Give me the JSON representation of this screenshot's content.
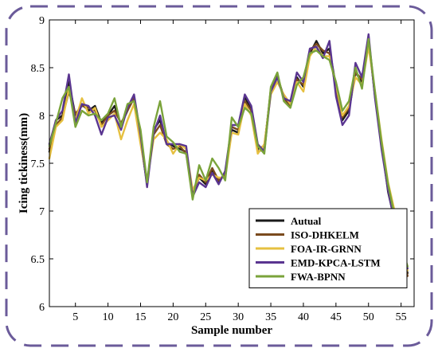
{
  "chart_data": {
    "type": "line",
    "xlabel": "Sample number",
    "ylabel": "Icing tickiness(mm)",
    "xlim": [
      1,
      57
    ],
    "ylim": [
      6,
      9
    ],
    "xticks": [
      5,
      10,
      15,
      20,
      25,
      30,
      35,
      40,
      45,
      50,
      55
    ],
    "yticks": [
      6,
      6.5,
      7,
      7.5,
      8,
      8.5,
      9
    ],
    "grid": false,
    "legend_position": "bottom-right",
    "x": [
      1,
      2,
      3,
      4,
      5,
      6,
      7,
      8,
      9,
      10,
      11,
      12,
      13,
      14,
      15,
      16,
      17,
      18,
      19,
      20,
      21,
      22,
      23,
      24,
      25,
      26,
      27,
      28,
      29,
      30,
      31,
      32,
      33,
      34,
      35,
      36,
      37,
      38,
      39,
      40,
      41,
      42,
      43,
      44,
      45,
      46,
      47,
      48,
      49,
      50,
      51,
      52,
      53,
      54,
      55,
      56
    ],
    "series": [
      {
        "name": "Autual",
        "color": "#1a1a1a",
        "values": [
          7.62,
          7.95,
          8.0,
          8.35,
          8.0,
          8.12,
          8.05,
          8.1,
          7.92,
          8.0,
          8.1,
          7.9,
          8.05,
          8.2,
          7.75,
          7.28,
          7.85,
          7.95,
          7.72,
          7.68,
          7.65,
          7.62,
          7.2,
          7.35,
          7.28,
          7.42,
          7.3,
          7.4,
          7.85,
          7.82,
          8.2,
          8.05,
          7.65,
          7.68,
          8.25,
          8.4,
          8.2,
          8.1,
          8.4,
          8.3,
          8.65,
          8.78,
          8.65,
          8.7,
          8.3,
          7.95,
          8.05,
          8.45,
          8.35,
          8.8,
          8.2,
          7.7,
          7.2,
          6.9,
          6.6,
          6.35
        ]
      },
      {
        "name": "ISO-DHKELM",
        "color": "#7a4a1e",
        "values": [
          7.65,
          7.9,
          7.98,
          8.25,
          8.02,
          8.1,
          8.08,
          8.05,
          7.9,
          8.0,
          8.05,
          7.92,
          8.05,
          8.18,
          7.72,
          7.3,
          7.8,
          7.9,
          7.7,
          7.65,
          7.68,
          7.6,
          7.18,
          7.38,
          7.3,
          7.45,
          7.32,
          7.38,
          7.88,
          7.85,
          8.15,
          8.05,
          7.62,
          7.65,
          8.28,
          8.42,
          8.18,
          8.1,
          8.38,
          8.32,
          8.68,
          8.75,
          8.68,
          8.65,
          8.28,
          7.98,
          8.08,
          8.45,
          8.38,
          8.78,
          8.22,
          7.68,
          7.25,
          6.92,
          6.62,
          6.32
        ]
      },
      {
        "name": "FOA-IR-GRNN",
        "color": "#e6c040",
        "values": [
          7.55,
          7.88,
          7.95,
          8.28,
          7.95,
          8.18,
          8.02,
          8.08,
          7.88,
          7.95,
          8.02,
          7.75,
          7.95,
          8.12,
          7.7,
          7.32,
          7.75,
          7.82,
          7.75,
          7.6,
          7.7,
          7.65,
          7.22,
          7.35,
          7.32,
          7.38,
          7.35,
          7.35,
          7.82,
          7.8,
          8.12,
          8.0,
          7.6,
          7.7,
          8.22,
          8.35,
          8.22,
          8.12,
          8.35,
          8.25,
          8.62,
          8.72,
          8.62,
          8.62,
          8.32,
          8.0,
          8.1,
          8.4,
          8.32,
          8.72,
          8.25,
          7.75,
          7.3,
          7.0,
          6.65,
          6.38
        ]
      },
      {
        "name": "EMD-KPCA-LSTM",
        "color": "#5a3590",
        "values": [
          7.7,
          7.95,
          8.05,
          8.43,
          7.92,
          8.12,
          8.1,
          8.0,
          7.8,
          7.98,
          8.0,
          7.85,
          8.08,
          8.22,
          7.8,
          7.25,
          7.82,
          8.0,
          7.7,
          7.7,
          7.7,
          7.68,
          7.15,
          7.3,
          7.25,
          7.4,
          7.28,
          7.42,
          7.9,
          7.9,
          8.22,
          8.1,
          7.7,
          7.62,
          8.25,
          8.4,
          8.18,
          8.15,
          8.45,
          8.35,
          8.7,
          8.72,
          8.6,
          8.78,
          8.2,
          7.9,
          8.0,
          8.55,
          8.4,
          8.85,
          8.18,
          7.65,
          7.22,
          6.88,
          6.58,
          6.4
        ]
      },
      {
        "name": "FWA-BPNN",
        "color": "#7aa33a",
        "values": [
          7.68,
          7.92,
          8.18,
          8.3,
          7.88,
          8.05,
          8.0,
          8.02,
          7.95,
          8.02,
          8.18,
          7.88,
          8.12,
          8.15,
          7.85,
          7.3,
          7.88,
          8.15,
          7.78,
          7.72,
          7.62,
          7.6,
          7.12,
          7.48,
          7.32,
          7.55,
          7.45,
          7.32,
          7.98,
          7.88,
          8.08,
          8.02,
          7.68,
          7.6,
          8.3,
          8.45,
          8.15,
          8.08,
          8.32,
          8.4,
          8.65,
          8.68,
          8.62,
          8.58,
          8.35,
          8.05,
          8.15,
          8.5,
          8.28,
          8.8,
          8.25,
          7.72,
          7.28,
          6.95,
          6.65,
          6.42
        ]
      }
    ]
  }
}
